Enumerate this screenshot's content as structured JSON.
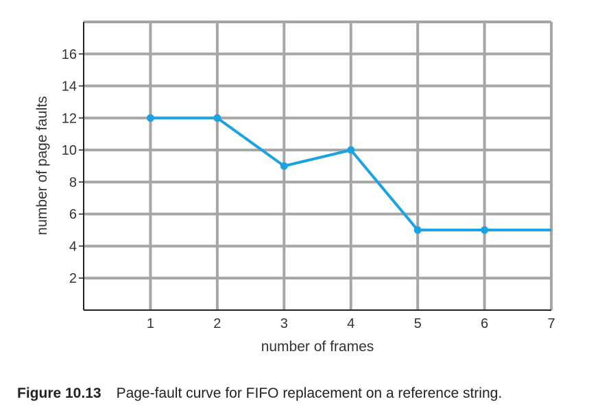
{
  "chart_data": {
    "type": "line",
    "xlabel": "number of frames",
    "ylabel": "number of page faults",
    "xlim": [
      0,
      7
    ],
    "ylim": [
      0,
      18
    ],
    "x_ticks": [
      1,
      2,
      3,
      4,
      5,
      6,
      7
    ],
    "y_ticks": [
      2,
      4,
      6,
      8,
      10,
      12,
      14,
      16
    ],
    "grid": true,
    "series": [
      {
        "x": [
          1,
          2,
          3,
          4,
          5,
          6,
          7
        ],
        "y": [
          12,
          12,
          9,
          10,
          5,
          5,
          5
        ],
        "markers": [
          true,
          true,
          true,
          true,
          true,
          true,
          false
        ],
        "color": "#1aa3e0"
      }
    ],
    "grid_color": "#a6a6a6"
  },
  "caption": {
    "figure_number": "Figure 10.13",
    "text": "Page-fault curve for FIFO replacement on a reference string."
  }
}
